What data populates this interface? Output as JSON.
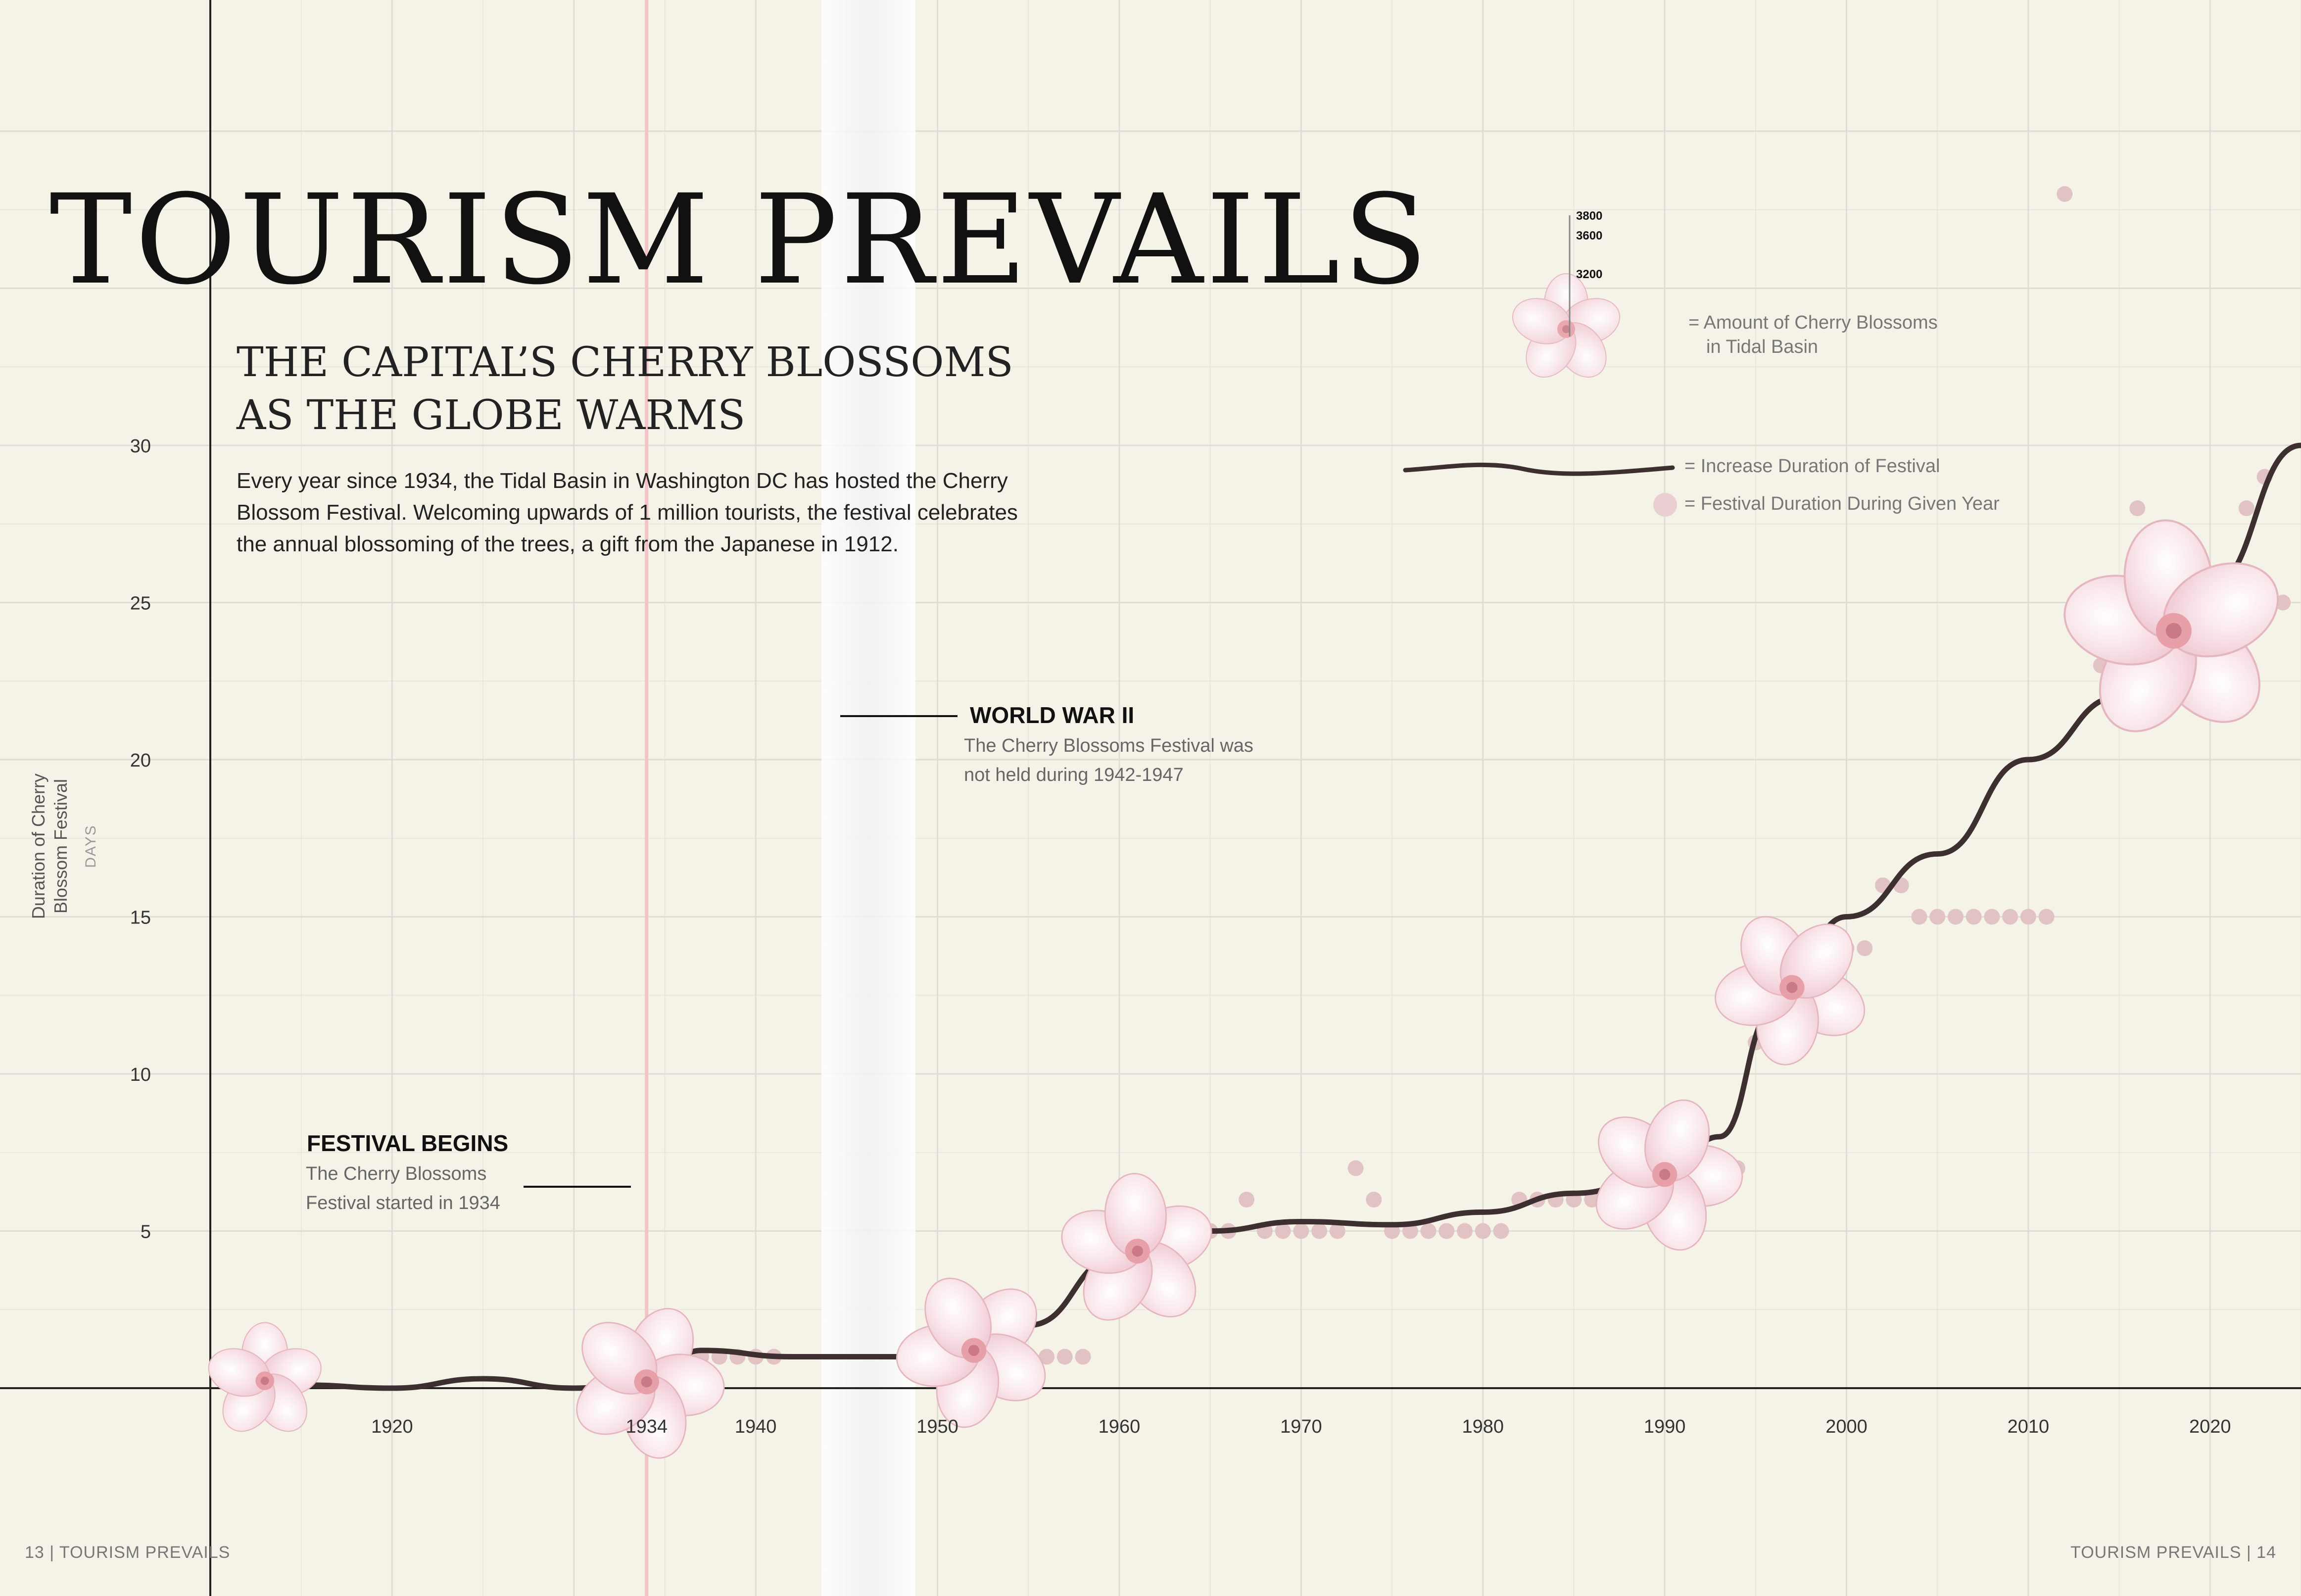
{
  "title": "TOURISM PREVAILS",
  "subtitle": [
    "THE CAPITAL’S CHERRY BLOSSOMS",
    "AS THE GLOBE WARMS"
  ],
  "intro": "Every year since 1934, the Tidal Basin in Washington DC has hosted the Cherry Blossom Festival. Welcoming upwards of 1 million tourists, the festival celebrates the annual blossoming of the trees, a gift from the Japanese in 1912.",
  "annotations": {
    "ww2": {
      "title": "WORLD WAR II",
      "text": "The Cherry Blossoms Festival was not held during 1942-1947"
    },
    "begins": {
      "title": "FESTIVAL BEGINS",
      "text": "The Cherry Blossoms Festival started in 1934"
    }
  },
  "legend": {
    "scale_ticks": [
      "3800",
      "3600",
      "3200"
    ],
    "blossoms": [
      "= Amount of Cherry Blossoms",
      "in Tidal Basin"
    ],
    "branch": "= Increase Duration of Festival",
    "dot": "= Festival Duration During Given Year"
  },
  "ylabel": [
    "Duration of Cherry",
    "Blossom Festival"
  ],
  "yunit": "DAYS",
  "footer": {
    "left": "13 | TOURISM PREVAILS",
    "right": "TOURISM PREVAILS | 14"
  },
  "colors": {
    "background": "#f5f3e8",
    "bar": "#ecd2d2",
    "bar_head": "#e2c3c3",
    "branch": "#3d2f2f",
    "petal": "#f5d3dc",
    "highlight": "#f3c4c7",
    "grid": "#dcdcd2"
  },
  "chart_data": {
    "type": "bar",
    "xlim": [
      1910,
      2025
    ],
    "ylim": [
      0,
      30
    ],
    "xticks": [
      1920,
      1934,
      1940,
      1950,
      1960,
      1970,
      1980,
      1990,
      2000,
      2010,
      2020
    ],
    "yticks": [
      5,
      10,
      15,
      20,
      25,
      30
    ],
    "highlight_year": 1934,
    "gap": [
      1942,
      1947
    ],
    "bars": [
      {
        "year": 1937,
        "days": 1
      },
      {
        "year": 1938,
        "days": 1
      },
      {
        "year": 1939,
        "days": 1
      },
      {
        "year": 1940,
        "days": 1
      },
      {
        "year": 1941,
        "days": 1
      },
      {
        "year": 1954,
        "days": 1
      },
      {
        "year": 1955,
        "days": 1
      },
      {
        "year": 1956,
        "days": 1
      },
      {
        "year": 1957,
        "days": 1
      },
      {
        "year": 1958,
        "days": 1
      },
      {
        "year": 1959,
        "days": 4
      },
      {
        "year": 1960,
        "days": 4
      },
      {
        "year": 1961,
        "days": 4
      },
      {
        "year": 1962,
        "days": 4
      },
      {
        "year": 1963,
        "days": 4
      },
      {
        "year": 1964,
        "days": 5
      },
      {
        "year": 1965,
        "days": 5
      },
      {
        "year": 1966,
        "days": 5
      },
      {
        "year": 1967,
        "days": 6
      },
      {
        "year": 1968,
        "days": 5
      },
      {
        "year": 1969,
        "days": 5
      },
      {
        "year": 1970,
        "days": 5
      },
      {
        "year": 1971,
        "days": 5
      },
      {
        "year": 1972,
        "days": 5
      },
      {
        "year": 1973,
        "days": 7
      },
      {
        "year": 1974,
        "days": 6
      },
      {
        "year": 1975,
        "days": 5
      },
      {
        "year": 1976,
        "days": 5
      },
      {
        "year": 1977,
        "days": 5
      },
      {
        "year": 1978,
        "days": 5
      },
      {
        "year": 1979,
        "days": 5
      },
      {
        "year": 1980,
        "days": 5
      },
      {
        "year": 1981,
        "days": 5
      },
      {
        "year": 1982,
        "days": 6
      },
      {
        "year": 1983,
        "days": 6
      },
      {
        "year": 1984,
        "days": 6
      },
      {
        "year": 1985,
        "days": 6
      },
      {
        "year": 1986,
        "days": 6
      },
      {
        "year": 1987,
        "days": 6
      },
      {
        "year": 1988,
        "days": 6
      },
      {
        "year": 1989,
        "days": 6
      },
      {
        "year": 1990,
        "days": 6
      },
      {
        "year": 1991,
        "days": 6
      },
      {
        "year": 1992,
        "days": 6
      },
      {
        "year": 1993,
        "days": 7
      },
      {
        "year": 1994,
        "days": 7
      },
      {
        "year": 1995,
        "days": 11
      },
      {
        "year": 1996,
        "days": 11
      },
      {
        "year": 1997,
        "days": 11
      },
      {
        "year": 1998,
        "days": 12
      },
      {
        "year": 1999,
        "days": 12
      },
      {
        "year": 2000,
        "days": 14
      },
      {
        "year": 2001,
        "days": 14
      },
      {
        "year": 2002,
        "days": 16
      },
      {
        "year": 2003,
        "days": 16
      },
      {
        "year": 2004,
        "days": 15
      },
      {
        "year": 2005,
        "days": 15
      },
      {
        "year": 2006,
        "days": 15
      },
      {
        "year": 2007,
        "days": 15
      },
      {
        "year": 2008,
        "days": 15
      },
      {
        "year": 2009,
        "days": 15
      },
      {
        "year": 2010,
        "days": 15
      },
      {
        "year": 2011,
        "days": 15
      },
      {
        "year": 2012,
        "days": 38
      },
      {
        "year": 2013,
        "days": 25
      },
      {
        "year": 2014,
        "days": 23
      },
      {
        "year": 2015,
        "days": 23
      },
      {
        "year": 2016,
        "days": 28
      },
      {
        "year": 2017,
        "days": 26
      },
      {
        "year": 2018,
        "days": 27
      },
      {
        "year": 2019,
        "days": 24
      },
      {
        "year": 2020,
        "days": 24
      },
      {
        "year": 2021,
        "days": 24
      },
      {
        "year": 2022,
        "days": 28
      },
      {
        "year": 2023,
        "days": 29
      },
      {
        "year": 2024,
        "days": 25
      }
    ],
    "trend": [
      {
        "year": 1912,
        "days": 0.3
      },
      {
        "year": 1915,
        "days": 0.1
      },
      {
        "year": 1920,
        "days": 0.0
      },
      {
        "year": 1925,
        "days": 0.3
      },
      {
        "year": 1930,
        "days": 0.0
      },
      {
        "year": 1934,
        "days": 0.2
      },
      {
        "year": 1937,
        "days": 1.2
      },
      {
        "year": 1942,
        "days": 1.0
      },
      {
        "year": 1948,
        "days": 1.0
      },
      {
        "year": 1952,
        "days": 1.2
      },
      {
        "year": 1955,
        "days": 2.0
      },
      {
        "year": 1960,
        "days": 4.2
      },
      {
        "year": 1965,
        "days": 5.0
      },
      {
        "year": 1970,
        "days": 5.3
      },
      {
        "year": 1975,
        "days": 5.2
      },
      {
        "year": 1980,
        "days": 5.6
      },
      {
        "year": 1985,
        "days": 6.2
      },
      {
        "year": 1990,
        "days": 6.8
      },
      {
        "year": 1993,
        "days": 8.0
      },
      {
        "year": 1996,
        "days": 12.0
      },
      {
        "year": 2000,
        "days": 15.0
      },
      {
        "year": 2005,
        "days": 17.0
      },
      {
        "year": 2010,
        "days": 20.0
      },
      {
        "year": 2015,
        "days": 22.0
      },
      {
        "year": 2020,
        "days": 25.5
      },
      {
        "year": 2025,
        "days": 30.0
      }
    ],
    "blossom_years": [
      1913,
      1934,
      1952,
      1961,
      1990,
      1997,
      2018
    ]
  }
}
